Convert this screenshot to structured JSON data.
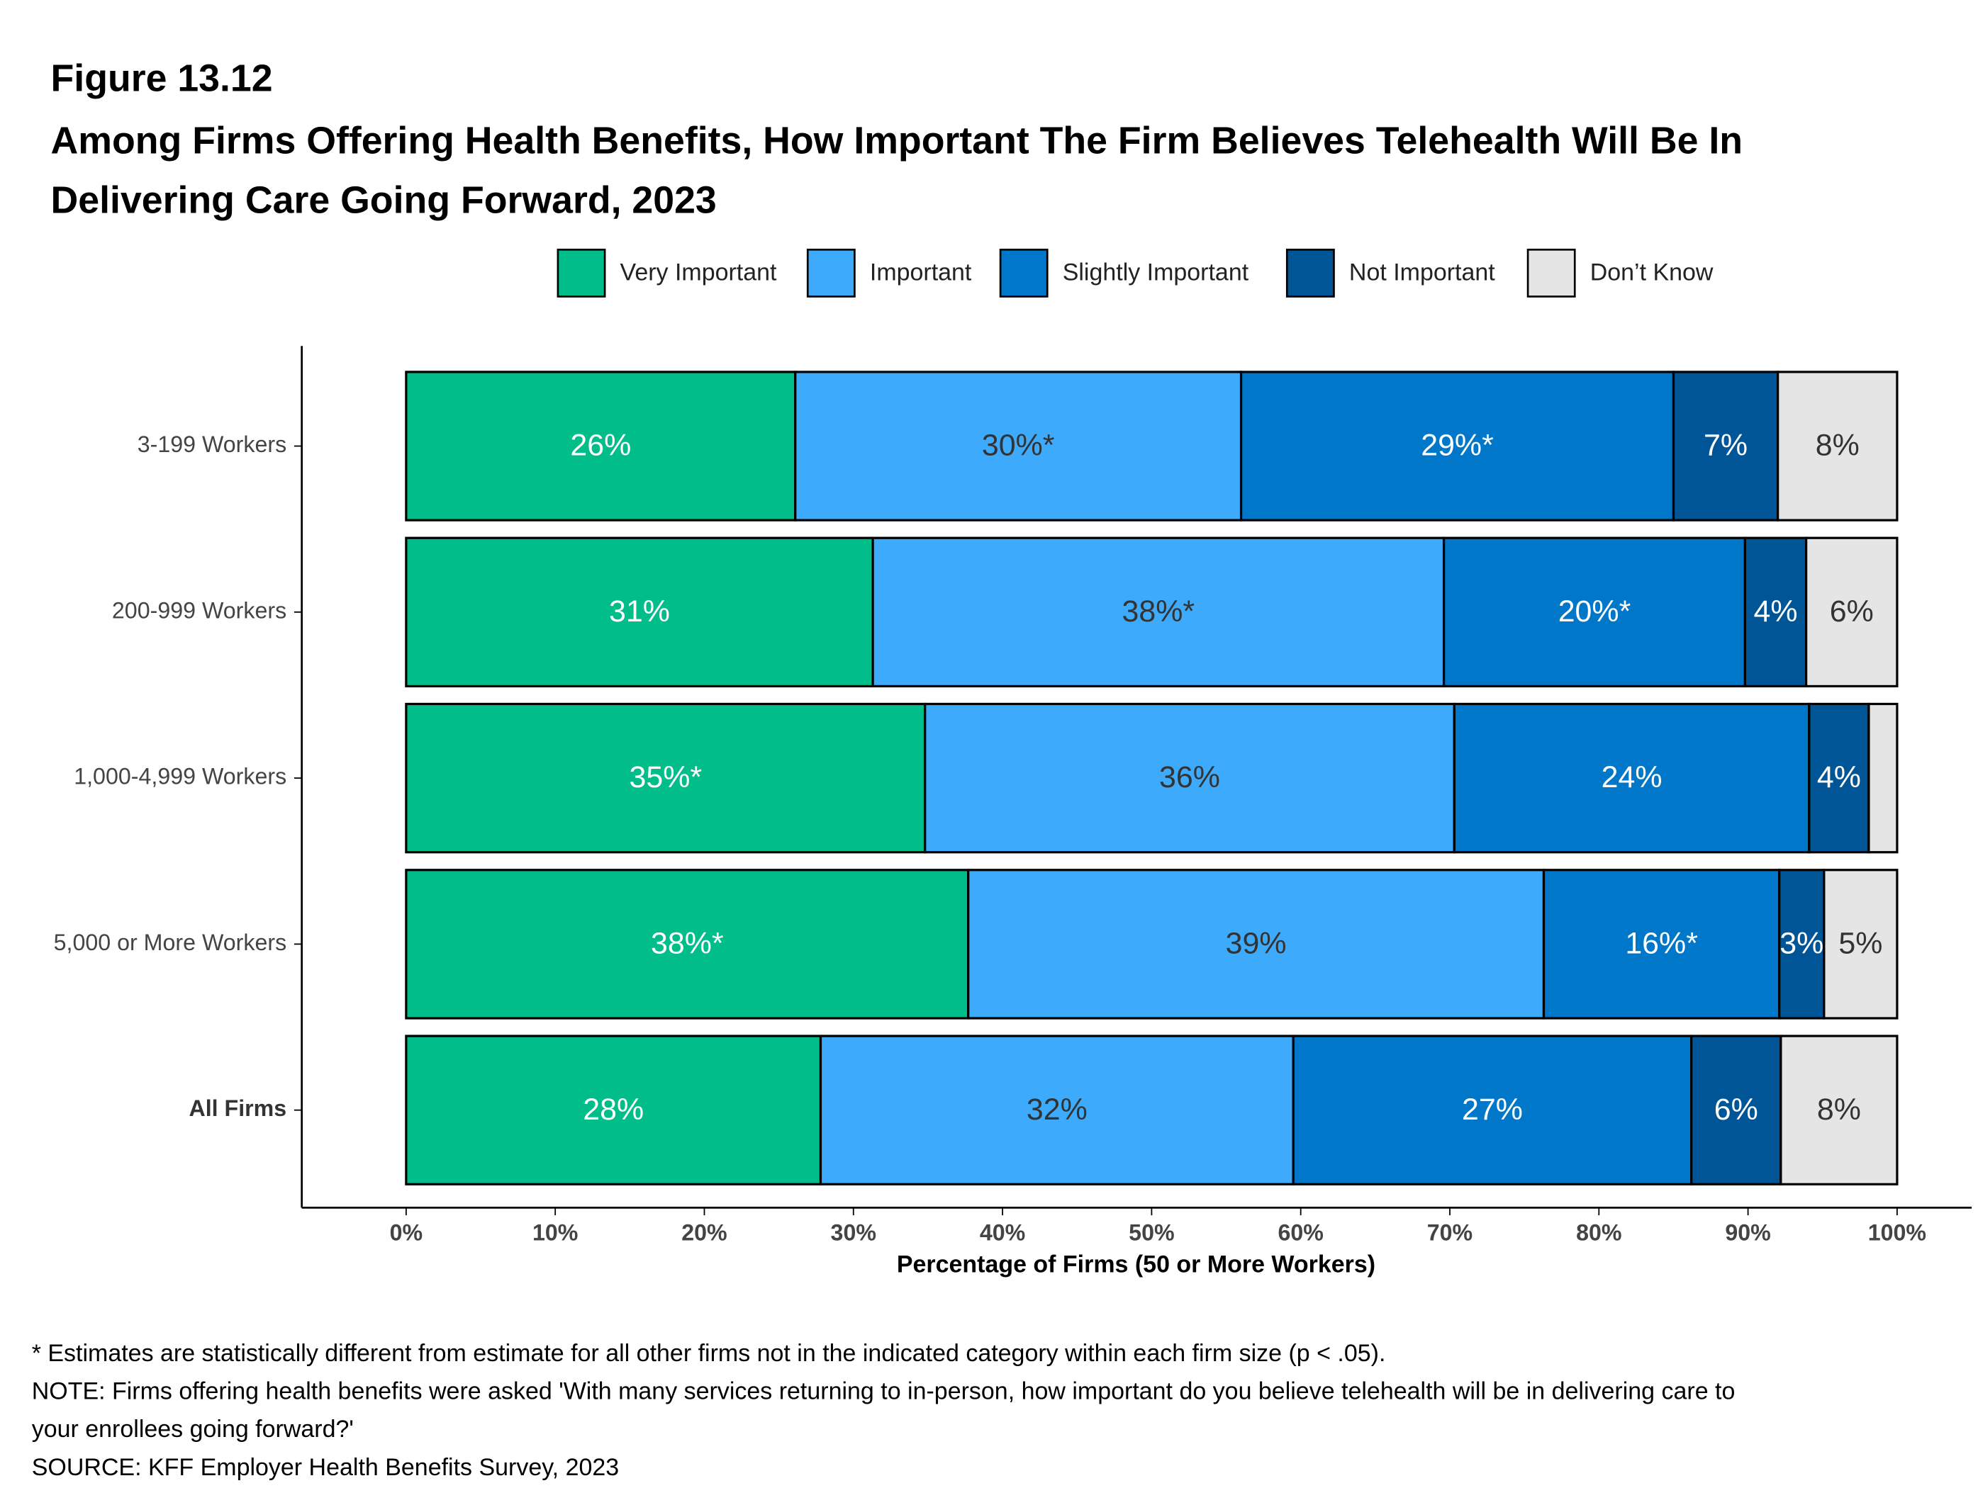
{
  "chart_data": {
    "type": "stacked-bar-horizontal",
    "figure_label": "Figure 13.12",
    "title": "Among Firms Offering Health Benefits, How Important The Firm Believes Telehealth Will Be In Delivering Care Going Forward, 2023",
    "x_label": "Percentage of Firms (50 or More Workers)",
    "categories": [
      "3-199 Workers",
      "200-999 Workers",
      "1,000-4,999 Workers",
      "5,000 or More Workers",
      "All Firms"
    ],
    "series": [
      {
        "name": "Very Important",
        "color": "#00bd8a",
        "label_color": "#ffffff",
        "values": [
          26.1,
          31.3,
          34.8,
          37.7,
          27.8
        ],
        "value_labels": [
          "26%",
          "31%",
          "35%*",
          "38%*",
          "28%"
        ]
      },
      {
        "name": "Important",
        "color": "#3daafc",
        "label_color": "#333333",
        "values": [
          29.9,
          38.3,
          35.5,
          38.6,
          31.7
        ],
        "value_labels": [
          "30%*",
          "38%*",
          "36%",
          "39%",
          "32%"
        ]
      },
      {
        "name": "Slightly Important",
        "color": "#0077c8",
        "label_color": "#ffffff",
        "values": [
          29.0,
          20.2,
          23.8,
          15.8,
          26.7
        ],
        "value_labels": [
          "29%*",
          "20%*",
          "24%",
          "16%*",
          "27%"
        ]
      },
      {
        "name": "Not Important",
        "color": "#005596",
        "label_color": "#ffffff",
        "values": [
          7.0,
          4.1,
          4.0,
          3.0,
          6.0
        ],
        "value_labels": [
          "7%",
          "4%",
          "4%",
          "3%",
          "6%"
        ]
      },
      {
        "name": "Don’t Know",
        "color": "#e5e5e5",
        "label_color": "#333333",
        "values": [
          8.0,
          6.1,
          1.9,
          4.9,
          7.8
        ],
        "value_labels": [
          "8%",
          "6%",
          null,
          "5%",
          "8%"
        ]
      }
    ],
    "xlim": [
      -7,
      105
    ],
    "xticks": [
      {
        "value": 0,
        "label": "0%"
      },
      {
        "value": 10,
        "label": "10%"
      },
      {
        "value": 20,
        "label": "20%"
      },
      {
        "value": 30,
        "label": "30%"
      },
      {
        "value": 40,
        "label": "40%"
      },
      {
        "value": 50,
        "label": "50%"
      },
      {
        "value": 60,
        "label": "60%"
      },
      {
        "value": 70,
        "label": "70%"
      },
      {
        "value": 80,
        "label": "80%"
      },
      {
        "value": 90,
        "label": "90%"
      },
      {
        "value": 100,
        "label": "100%"
      }
    ],
    "notes": [
      "* Estimates are statistically different from estimate for all other firms not in the indicated category within each firm size (p < .05).",
      "NOTE: Firms offering health benefits were asked 'With many services returning to in-person, how important do you believe telehealth will be in delivering care to your enrollees going forward?'",
      "SOURCE: KFF Employer Health Benefits Survey, 2023"
    ]
  }
}
